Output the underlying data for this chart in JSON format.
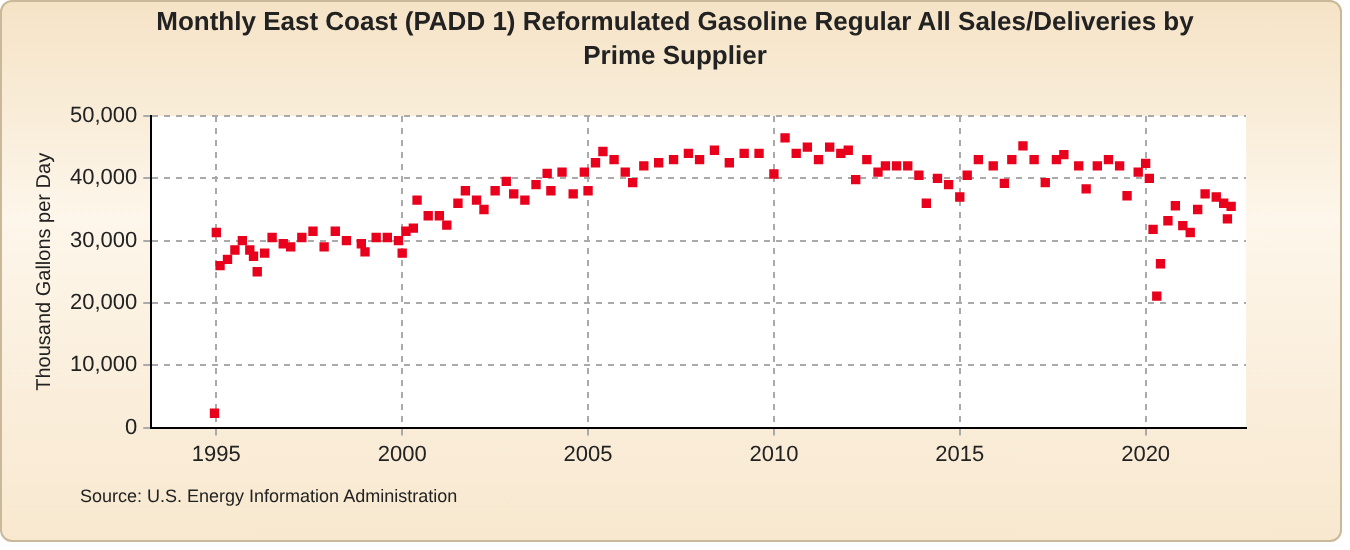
{
  "chart_data": {
    "type": "scatter",
    "title": "Monthly East Coast (PADD 1) Reformulated Gasoline Regular All Sales/Deliveries by Prime Supplier",
    "ylabel": "Thousand Gallons per Day",
    "annotations": [
      "Source: U.S. Energy Information Administration"
    ],
    "x": [
      1994.95,
      1995.0,
      1995.1,
      1995.3,
      1995.5,
      1995.7,
      1995.9,
      1996.0,
      1996.1,
      1996.3,
      1996.5,
      1996.8,
      1997.0,
      1997.3,
      1997.6,
      1997.9,
      1998.2,
      1998.5,
      1998.9,
      1999.0,
      1999.3,
      1999.6,
      1999.9,
      2000.0,
      2000.1,
      2000.3,
      2000.4,
      2000.7,
      2001.0,
      2001.2,
      2001.5,
      2001.7,
      2002.0,
      2002.2,
      2002.5,
      2002.8,
      2003.0,
      2003.3,
      2003.6,
      2003.9,
      2004.0,
      2004.3,
      2004.6,
      2004.9,
      2005.0,
      2005.2,
      2005.4,
      2005.7,
      2006.0,
      2006.2,
      2006.5,
      2006.9,
      2007.3,
      2007.7,
      2008.0,
      2008.4,
      2008.8,
      2009.2,
      2009.6,
      2010.0,
      2010.3,
      2010.6,
      2010.9,
      2011.2,
      2011.5,
      2011.8,
      2012.0,
      2012.2,
      2012.5,
      2012.8,
      2013.0,
      2013.3,
      2013.6,
      2013.9,
      2014.1,
      2014.4,
      2014.7,
      2015.0,
      2015.2,
      2015.5,
      2015.9,
      2016.2,
      2016.4,
      2016.7,
      2017.0,
      2017.3,
      2017.6,
      2017.8,
      2018.2,
      2018.4,
      2018.7,
      2019.0,
      2019.3,
      2019.5,
      2019.8,
      2020.0,
      2020.1,
      2020.2,
      2020.3,
      2020.4,
      2020.6,
      2020.8,
      2021.0,
      2021.2,
      2021.4,
      2021.6,
      2021.9,
      2022.1,
      2022.2,
      2022.3
    ],
    "series": [
      {
        "color": "#e8001c",
        "values": [
          2300,
          31300,
          26000,
          27000,
          28500,
          30000,
          28500,
          27500,
          25000,
          28000,
          30500,
          29500,
          29000,
          30500,
          31500,
          29000,
          31500,
          30000,
          29500,
          28200,
          30500,
          30500,
          30000,
          28000,
          31500,
          32000,
          36500,
          34000,
          34000,
          32500,
          36000,
          38000,
          36500,
          35000,
          38000,
          39500,
          37500,
          36500,
          39000,
          40800,
          38000,
          41000,
          37500,
          41000,
          38000,
          42500,
          44300,
          43000,
          41000,
          39300,
          42000,
          42500,
          43000,
          44000,
          43000,
          44500,
          42500,
          44000,
          44000,
          40700,
          46500,
          44000,
          45000,
          43000,
          45000,
          44000,
          44500,
          39800,
          43000,
          41000,
          42000,
          42000,
          42000,
          40500,
          36000,
          40000,
          39000,
          37000,
          40500,
          43000,
          42000,
          39200,
          43000,
          45200,
          43000,
          39300,
          43000,
          43800,
          42000,
          38300,
          42000,
          43000,
          42000,
          37200,
          41000,
          42400,
          40000,
          31800,
          21100,
          26300,
          33200,
          35600,
          32400,
          31300,
          35000,
          37500,
          37000,
          36000,
          33500,
          35500
        ]
      }
    ],
    "xlim": [
      1993.25,
      2022.7
    ],
    "xticks": [
      1995,
      2000,
      2005,
      2010,
      2015,
      2020
    ],
    "ylim": [
      0,
      50000
    ],
    "yticks": [
      0,
      {
        "value": 10000,
        "label": "10,000"
      },
      {
        "value": 20000,
        "label": "20,000"
      },
      {
        "value": 30000,
        "label": "30,000"
      },
      {
        "value": 40000,
        "label": "40,000"
      },
      {
        "value": 50000,
        "label": "50,000"
      }
    ],
    "grid": true,
    "marker": "square",
    "legend": false
  }
}
